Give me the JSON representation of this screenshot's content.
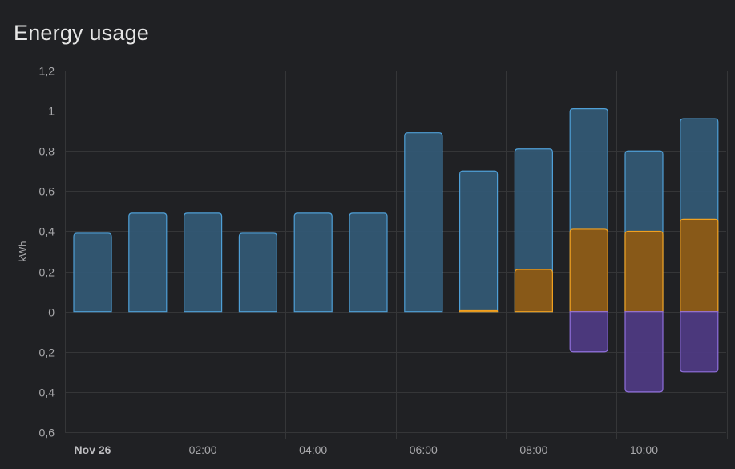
{
  "card": {
    "title": "Energy usage"
  },
  "colors": {
    "grid": "#353638",
    "consumption_fill": "#335874",
    "consumption_stroke": "#4f9fd6",
    "solar_fill": "#8d5a13",
    "solar_stroke": "#f0a020",
    "return_fill": "#4e3a82",
    "return_stroke": "#8f6fdc",
    "tick_text": "#a9a9ac"
  },
  "chart_data": {
    "type": "bar",
    "ylabel": "kWh",
    "ylim": [
      -0.6,
      1.2
    ],
    "y_ticks": [
      {
        "value": 1.2,
        "label": "1,2"
      },
      {
        "value": 1.0,
        "label": "1"
      },
      {
        "value": 0.8,
        "label": "0,8"
      },
      {
        "value": 0.6,
        "label": "0,6"
      },
      {
        "value": 0.4,
        "label": "0,4"
      },
      {
        "value": 0.2,
        "label": "0,2"
      },
      {
        "value": 0.0,
        "label": "0"
      },
      {
        "value": -0.2,
        "label": "0,2"
      },
      {
        "value": -0.4,
        "label": "0,4"
      },
      {
        "value": -0.6,
        "label": "0,6"
      }
    ],
    "categories": [
      "00:00",
      "01:00",
      "02:00",
      "03:00",
      "04:00",
      "05:00",
      "06:00",
      "07:00",
      "08:00",
      "09:00",
      "10:00",
      "11:00"
    ],
    "x_tick_labels": [
      {
        "index": 0,
        "label": "Nov 26",
        "bold": true
      },
      {
        "index": 2,
        "label": "02:00",
        "bold": false
      },
      {
        "index": 4,
        "label": "04:00",
        "bold": false
      },
      {
        "index": 6,
        "label": "06:00",
        "bold": false
      },
      {
        "index": 8,
        "label": "08:00",
        "bold": false
      },
      {
        "index": 10,
        "label": "10:00",
        "bold": false
      }
    ],
    "series": [
      {
        "key": "consumption",
        "stack": "total",
        "values": [
          0.39,
          0.49,
          0.49,
          0.39,
          0.49,
          0.49,
          0.89,
          0.7,
          0.81,
          1.01,
          0.8,
          0.96
        ]
      },
      {
        "key": "solar",
        "stack": "overlay",
        "values": [
          0,
          0,
          0,
          0,
          0,
          0,
          0,
          0.005,
          0.21,
          0.41,
          0.4,
          0.46
        ]
      },
      {
        "key": "return",
        "stack": "negative",
        "values": [
          0,
          0,
          0,
          0,
          0,
          0,
          0,
          0,
          0,
          -0.2,
          -0.4,
          -0.3
        ]
      }
    ],
    "grid": true,
    "legend": "none"
  }
}
